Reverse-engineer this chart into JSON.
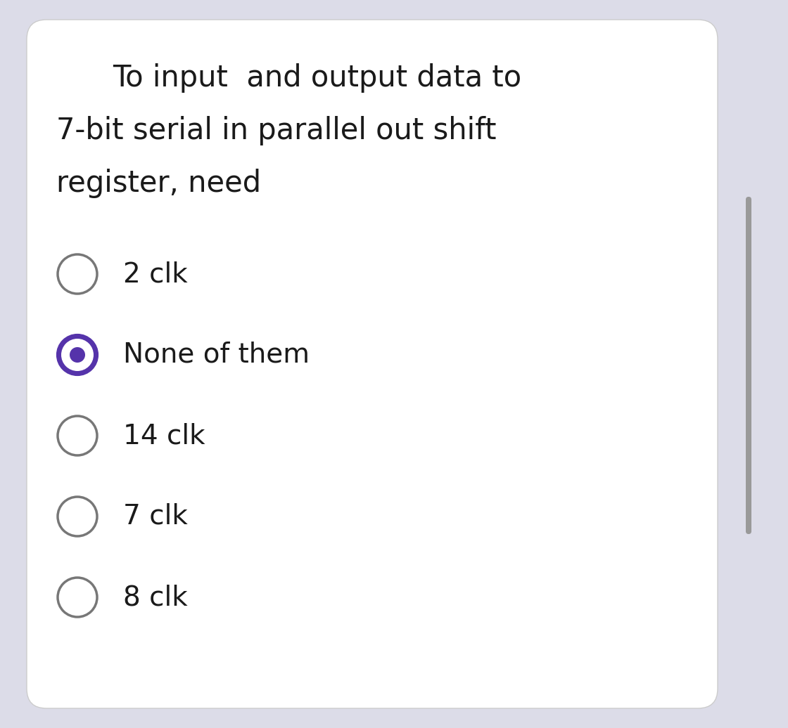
{
  "question_lines": [
    "To input  and output data to",
    "7-bit serial in parallel out shift",
    "register, need"
  ],
  "options": [
    {
      "label": "2 clk",
      "selected": false
    },
    {
      "label": "None of them",
      "selected": true
    },
    {
      "label": "14 clk",
      "selected": false
    },
    {
      "label": "7 clk",
      "selected": false
    },
    {
      "label": "8 clk",
      "selected": false
    }
  ],
  "bg_outer": "#dcdce8",
  "bg_card": "#ffffff",
  "text_color": "#1a1a1a",
  "radio_selected_fill": "#5533aa",
  "radio_selected_border": "#5533aa",
  "radio_selected_dot": "#5533aa",
  "radio_unselected_fill": "#ffffff",
  "radio_unselected_border": "#777777",
  "question_fontsize": 30,
  "option_fontsize": 28,
  "scrollbar_color": "#999999"
}
